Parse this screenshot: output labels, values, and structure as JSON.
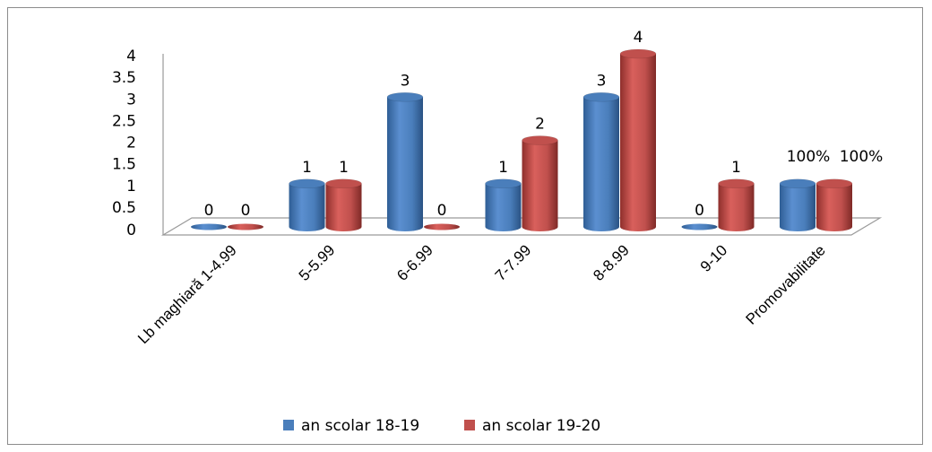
{
  "chart_data": {
    "type": "bar",
    "title": "",
    "xlabel": "",
    "ylabel": "",
    "ylim": [
      0,
      4
    ],
    "yticks": [
      "0",
      "0.5",
      "1",
      "1.5",
      "2",
      "2.5",
      "3",
      "3.5",
      "4"
    ],
    "categories": [
      "Lb maghiară 1-4.99",
      "5-5.99",
      "6-6.99",
      "7-7.99",
      "8-8.99",
      "9-10",
      "Promovabilitate"
    ],
    "series": [
      {
        "name": "an scolar 18-19",
        "color": "#4a7ebb",
        "values": [
          0,
          1,
          3,
          1,
          3,
          0,
          1
        ],
        "labels": [
          "0",
          "1",
          "3",
          "1",
          "3",
          "0",
          "100%"
        ]
      },
      {
        "name": "an scolar 19-20",
        "color": "#c0504d",
        "values": [
          0,
          1,
          0,
          2,
          4,
          1,
          1
        ],
        "labels": [
          "0",
          "1",
          "0",
          "2",
          "4",
          "1",
          "100%"
        ]
      }
    ],
    "legend_position": "bottom",
    "grid": false,
    "style": "3d-cylinder"
  }
}
